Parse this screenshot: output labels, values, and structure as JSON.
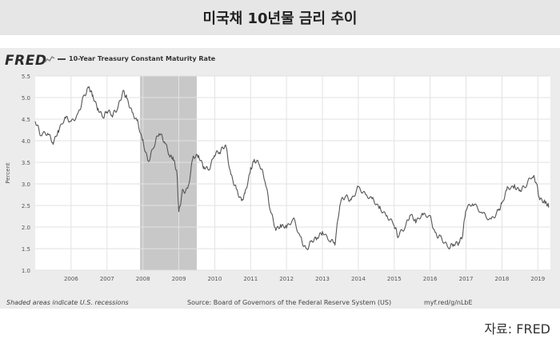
{
  "header": {
    "title": "미국채 10년물 금리 추이"
  },
  "brand": {
    "name": "FRED"
  },
  "credit": "자료: FRED",
  "footer": {
    "recession_note": "Shaded areas indicate U.S. recessions",
    "source": "Source: Board of Governors of the Federal Reserve System (US)",
    "short_url": "myf.red/g/nLbE"
  },
  "colors": {
    "line": "#555555",
    "recession": "#c8c8c8",
    "plot_bg": "#ffffff",
    "grid": "#e2e2e2"
  },
  "chart_data": {
    "type": "line",
    "title": "",
    "xlabel": "",
    "ylabel": "Percent",
    "ylim": [
      1.0,
      5.5
    ],
    "yticks": [
      "1.0",
      "1.5",
      "2.0",
      "2.5",
      "3.0",
      "3.5",
      "4.0",
      "4.5",
      "5.0",
      "5.5"
    ],
    "xlim": [
      2005.0,
      2019.35
    ],
    "xticks": [
      "2006",
      "2007",
      "2008",
      "2009",
      "2010",
      "2011",
      "2012",
      "2013",
      "2014",
      "2015",
      "2016",
      "2017",
      "2018",
      "2019"
    ],
    "grid": true,
    "recessions": [
      [
        2007.92,
        2009.5
      ]
    ],
    "series": [
      {
        "name": "10-Year Treasury Constant Maturity Rate",
        "x": [
          2005.0,
          2005.15,
          2005.35,
          2005.5,
          2005.65,
          2005.85,
          2006.0,
          2006.2,
          2006.35,
          2006.5,
          2006.6,
          2006.75,
          2006.9,
          2007.0,
          2007.15,
          2007.3,
          2007.45,
          2007.55,
          2007.7,
          2007.85,
          2008.0,
          2008.15,
          2008.3,
          2008.45,
          2008.6,
          2008.75,
          2008.85,
          2008.95,
          2009.0,
          2009.1,
          2009.25,
          2009.4,
          2009.55,
          2009.7,
          2009.85,
          2010.0,
          2010.15,
          2010.3,
          2010.45,
          2010.6,
          2010.75,
          2010.85,
          2011.0,
          2011.1,
          2011.25,
          2011.4,
          2011.55,
          2011.7,
          2011.85,
          2012.0,
          2012.2,
          2012.4,
          2012.55,
          2012.7,
          2012.85,
          2013.0,
          2013.2,
          2013.35,
          2013.5,
          2013.65,
          2013.8,
          2014.0,
          2014.2,
          2014.4,
          2014.6,
          2014.8,
          2015.0,
          2015.1,
          2015.3,
          2015.45,
          2015.6,
          2015.8,
          2016.0,
          2016.15,
          2016.3,
          2016.5,
          2016.65,
          2016.8,
          2016.9,
          2017.0,
          2017.2,
          2017.45,
          2017.7,
          2017.9,
          2018.0,
          2018.15,
          2018.35,
          2018.5,
          2018.65,
          2018.85,
          2018.95,
          2019.05,
          2019.2,
          2019.3
        ],
        "y": [
          4.45,
          4.1,
          4.2,
          4.0,
          4.25,
          4.5,
          4.4,
          4.65,
          5.05,
          5.2,
          5.0,
          4.75,
          4.6,
          4.7,
          4.55,
          4.75,
          5.2,
          5.0,
          4.6,
          4.4,
          4.0,
          3.55,
          3.85,
          4.15,
          4.0,
          3.7,
          3.6,
          3.2,
          2.3,
          2.85,
          2.9,
          3.6,
          3.6,
          3.4,
          3.4,
          3.7,
          3.7,
          3.9,
          3.25,
          2.9,
          2.55,
          2.75,
          3.35,
          3.6,
          3.45,
          3.05,
          2.4,
          2.0,
          2.05,
          1.95,
          2.15,
          1.75,
          1.5,
          1.65,
          1.7,
          1.9,
          1.75,
          1.65,
          2.55,
          2.7,
          2.65,
          2.95,
          2.7,
          2.6,
          2.45,
          2.3,
          2.05,
          1.75,
          2.0,
          2.35,
          2.15,
          2.25,
          2.2,
          1.85,
          1.8,
          1.5,
          1.55,
          1.65,
          1.85,
          2.45,
          2.5,
          2.3,
          2.2,
          2.4,
          2.5,
          2.85,
          2.95,
          2.9,
          2.95,
          3.15,
          3.05,
          2.7,
          2.6,
          2.45
        ]
      }
    ]
  }
}
